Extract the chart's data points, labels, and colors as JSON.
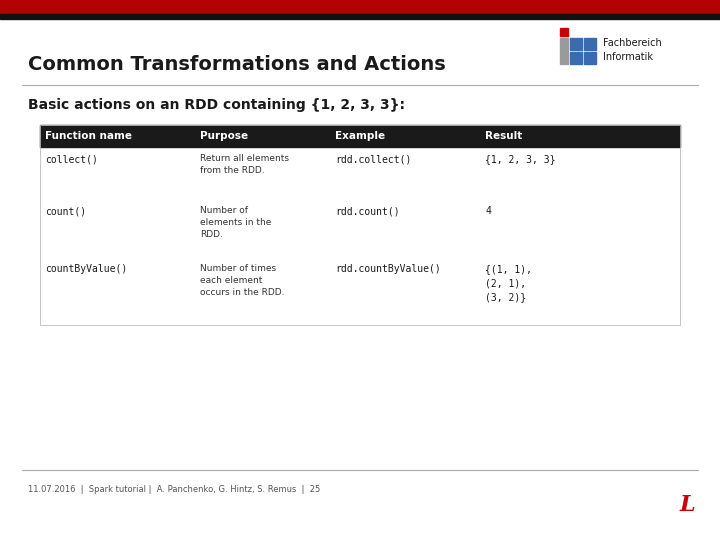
{
  "title": "Common Transformations and Actions",
  "subtitle": "Basic actions on an RDD containing {1, 2, 3, 3}:",
  "bg_color": "#ffffff",
  "top_bar_color": "#b50000",
  "top_bar_dark_color": "#111111",
  "header_bg": "#1a1a1a",
  "header_text_color": "#ffffff",
  "header_cols": [
    "Function name",
    "Purpose",
    "Example",
    "Result"
  ],
  "rows": [
    {
      "func": "collect()",
      "purpose": "Return all elements\nfrom the RDD.",
      "example": "rdd.collect()",
      "result": "{1, 2, 3, 3}"
    },
    {
      "func": "count()",
      "purpose": "Number of\nelements in the\nRDD.",
      "example": "rdd.count()",
      "result": "4"
    },
    {
      "func": "countByValue()",
      "purpose": "Number of times\neach element\noccurs in the RDD.",
      "example": "rdd.countByValue()",
      "result": "{(1, 1),\n(2, 1),\n(3, 2)}"
    }
  ],
  "footer_text": "11.07.2016  |  Spark tutorial |  A. Panchenko, G. Hintz, S. Remus  |  25",
  "title_fontsize": 14,
  "subtitle_fontsize": 10,
  "header_fontsize": 7.5,
  "cell_fontsize": 7,
  "purpose_fontsize": 6.5,
  "footer_fontsize": 6,
  "fachbereich_text": "Fachbereich\nInformatik",
  "logo_red": "#cc0000",
  "logo_blue": "#3a6ab0",
  "logo_gray": "#9a9a9a"
}
